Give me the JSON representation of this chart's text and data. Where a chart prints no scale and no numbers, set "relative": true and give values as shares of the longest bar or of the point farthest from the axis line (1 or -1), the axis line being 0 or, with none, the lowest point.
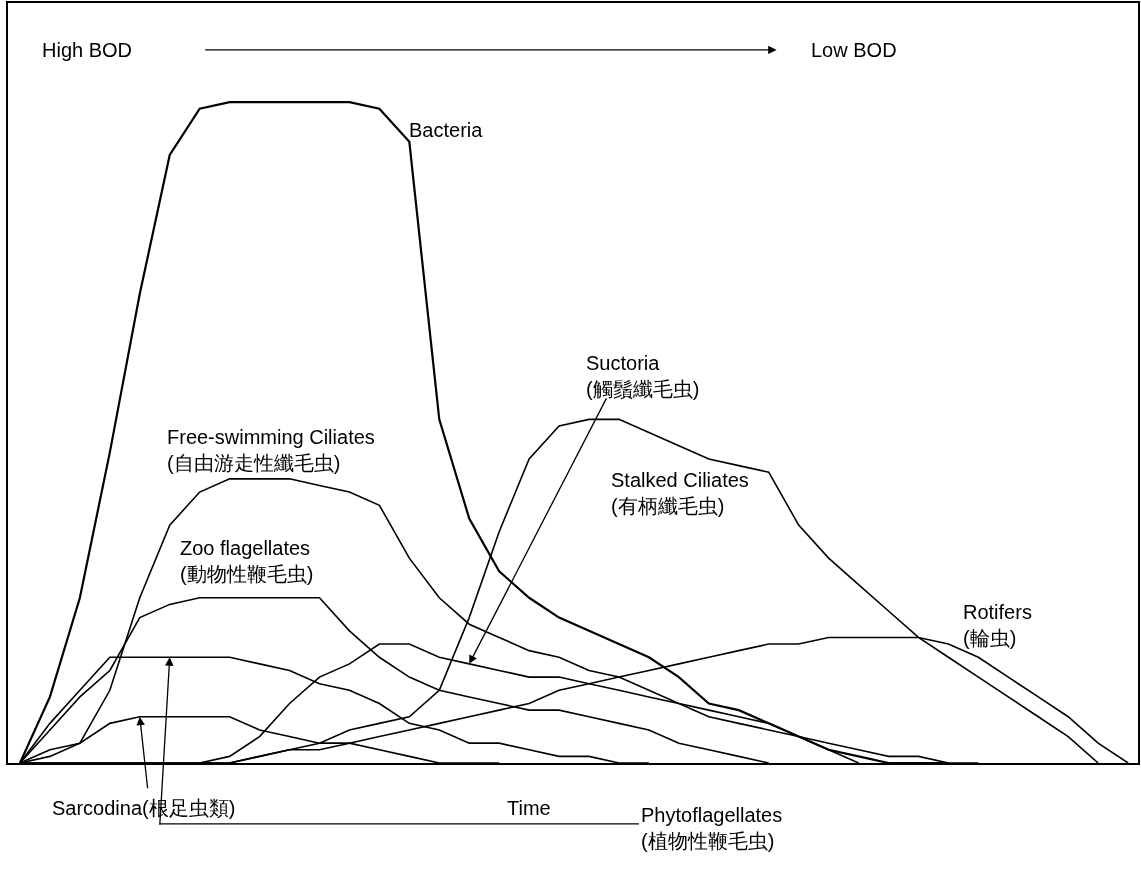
{
  "chart_data": {
    "type": "line",
    "relative": true,
    "xlabel": "Time",
    "annotations": [
      "High BOD",
      "Low BOD"
    ],
    "marker": "none",
    "line_style": "solid",
    "legend": false,
    "categories": [
      null,
      null,
      null,
      null,
      null,
      null,
      null,
      null,
      null,
      null,
      null,
      null,
      null,
      null,
      null,
      null,
      null,
      null,
      null,
      null,
      null,
      null,
      null,
      null,
      null,
      null,
      null,
      null,
      null,
      null,
      null,
      null,
      null,
      null,
      null,
      null,
      null,
      null
    ],
    "series": [
      {
        "name": "Bacteria",
        "color": "#000000",
        "values": [
          0,
          0.1,
          0.25,
          0.47,
          0.71,
          0.92,
          0.99,
          1,
          1,
          1,
          1,
          1,
          0.99,
          0.94,
          0.52,
          0.37,
          0.29,
          0.25,
          0.22,
          0.2,
          0.18,
          0.16,
          0.13,
          0.09,
          0.08,
          0.06,
          0.04,
          0.02,
          0.01,
          0,
          0,
          0,
          null,
          null,
          null,
          null,
          null,
          null
        ]
      },
      {
        "name": "Free-swimming Ciliates\n(自由游走性纖毛虫)",
        "color": "#000000",
        "values": [
          0,
          0.01,
          0.03,
          0.11,
          0.25,
          0.36,
          0.41,
          0.43,
          0.43,
          0.43,
          0.42,
          0.41,
          0.39,
          0.31,
          0.25,
          0.21,
          0.19,
          0.17,
          0.16,
          0.14,
          0.13,
          0.11,
          0.09,
          0.08,
          0.07,
          0.06,
          0.04,
          0.03,
          0.02,
          0.01,
          0.01,
          0,
          0,
          null,
          null,
          null,
          null,
          null
        ]
      },
      {
        "name": "Zoo flagellates\n(動物性鞭毛虫)",
        "color": "#000000",
        "values": [
          0,
          0.05,
          0.1,
          0.14,
          0.22,
          0.24,
          0.25,
          0.25,
          0.25,
          0.25,
          0.25,
          0.2,
          0.16,
          0.13,
          0.11,
          0.1,
          0.09,
          0.08,
          0.08,
          0.07,
          0.06,
          0.05,
          0.03,
          0.02,
          0.01,
          0,
          null,
          null,
          null,
          null,
          null,
          null,
          null,
          null,
          null,
          null,
          null,
          null
        ]
      },
      {
        "name": "Phytoflagellates\n(植物性鞭毛虫)",
        "color": "#000000",
        "values": [
          0,
          0.06,
          0.11,
          0.16,
          0.16,
          0.16,
          0.16,
          0.16,
          0.15,
          0.14,
          0.12,
          0.11,
          0.09,
          0.06,
          0.05,
          0.03,
          0.03,
          0.02,
          0.01,
          0.01,
          0,
          0,
          null,
          null,
          null,
          null,
          null,
          null,
          null,
          null,
          null,
          null,
          null,
          null,
          null,
          null,
          null,
          null
        ]
      },
      {
        "name": "Sarcodina(根足虫類)",
        "color": "#000000",
        "values": [
          0,
          0.02,
          0.03,
          0.06,
          0.07,
          0.07,
          0.07,
          0.07,
          0.05,
          0.04,
          0.03,
          0.03,
          0.02,
          0.01,
          0,
          0,
          0,
          null,
          null,
          null,
          null,
          null,
          null,
          null,
          null,
          null,
          null,
          null,
          null,
          null,
          null,
          null,
          null,
          null,
          null,
          null,
          null,
          null
        ]
      },
      {
        "name": "Suctoria\n(觸鬚纖毛虫)",
        "color": "#000000",
        "values": [
          0,
          0,
          0,
          0,
          0,
          0,
          0,
          0.01,
          0.04,
          0.09,
          0.13,
          0.15,
          0.18,
          0.18,
          0.16,
          0.15,
          0.14,
          0.13,
          0.13,
          0.12,
          0.11,
          0.1,
          0.09,
          0.07,
          0.06,
          0.05,
          0.04,
          0.02,
          0,
          null,
          null,
          null,
          null,
          null,
          null,
          null,
          null,
          null
        ]
      },
      {
        "name": "Stalked Ciliates\n(有柄纖毛虫)",
        "color": "#000000",
        "values": [
          0,
          0,
          0,
          0,
          0,
          0,
          0,
          0,
          0.01,
          0.02,
          0.03,
          0.05,
          0.06,
          0.07,
          0.11,
          0.22,
          0.35,
          0.46,
          0.51,
          0.52,
          0.52,
          0.5,
          0.48,
          0.46,
          0.45,
          0.44,
          0.36,
          0.31,
          0.27,
          0.23,
          0.19,
          0.16,
          0.13,
          0.1,
          0.07,
          0.04,
          0,
          null
        ]
      },
      {
        "name": "Rotifers\n(輪虫)",
        "color": "#000000",
        "values": [
          null,
          null,
          null,
          null,
          null,
          null,
          0,
          0,
          0.01,
          0.02,
          0.02,
          0.03,
          0.04,
          0.05,
          0.06,
          0.07,
          0.08,
          0.09,
          0.11,
          0.12,
          0.13,
          0.14,
          0.15,
          0.16,
          0.17,
          0.18,
          0.18,
          0.19,
          0.19,
          0.19,
          0.19,
          0.18,
          0.16,
          0.13,
          0.1,
          0.07,
          0.03,
          0
        ]
      }
    ]
  }
}
